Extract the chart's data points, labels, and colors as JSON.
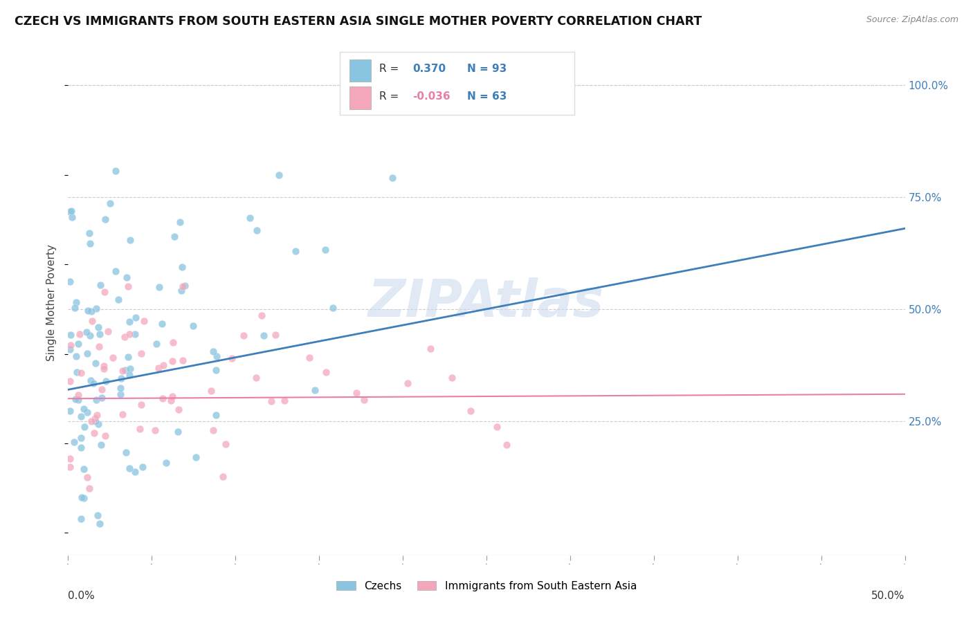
{
  "title": "CZECH VS IMMIGRANTS FROM SOUTH EASTERN ASIA SINGLE MOTHER POVERTY CORRELATION CHART",
  "source": "Source: ZipAtlas.com",
  "ylabel": "Single Mother Poverty",
  "right_yticks": [
    0.25,
    0.5,
    0.75,
    1.0
  ],
  "right_yticklabels": [
    "25.0%",
    "50.0%",
    "75.0%",
    "100.0%"
  ],
  "xlim": [
    0.0,
    0.5
  ],
  "ylim": [
    -0.05,
    1.08
  ],
  "blue_R": 0.37,
  "blue_N": 93,
  "pink_R": -0.036,
  "pink_N": 63,
  "blue_color": "#89C4E1",
  "pink_color": "#F4A7BB",
  "blue_line_color": "#3D7EBB",
  "pink_line_color": "#E87FAA",
  "blue_label": "Czechs",
  "pink_label": "Immigrants from South Eastern Asia",
  "watermark": "ZIPAtlas",
  "grid_color": "#CCCCCC",
  "legend_R_color_blue": "#3D7EBB",
  "legend_R_color_pink": "#E87FAA",
  "legend_N_color": "#3D7EBB",
  "tick_color": "#3D7EBB"
}
